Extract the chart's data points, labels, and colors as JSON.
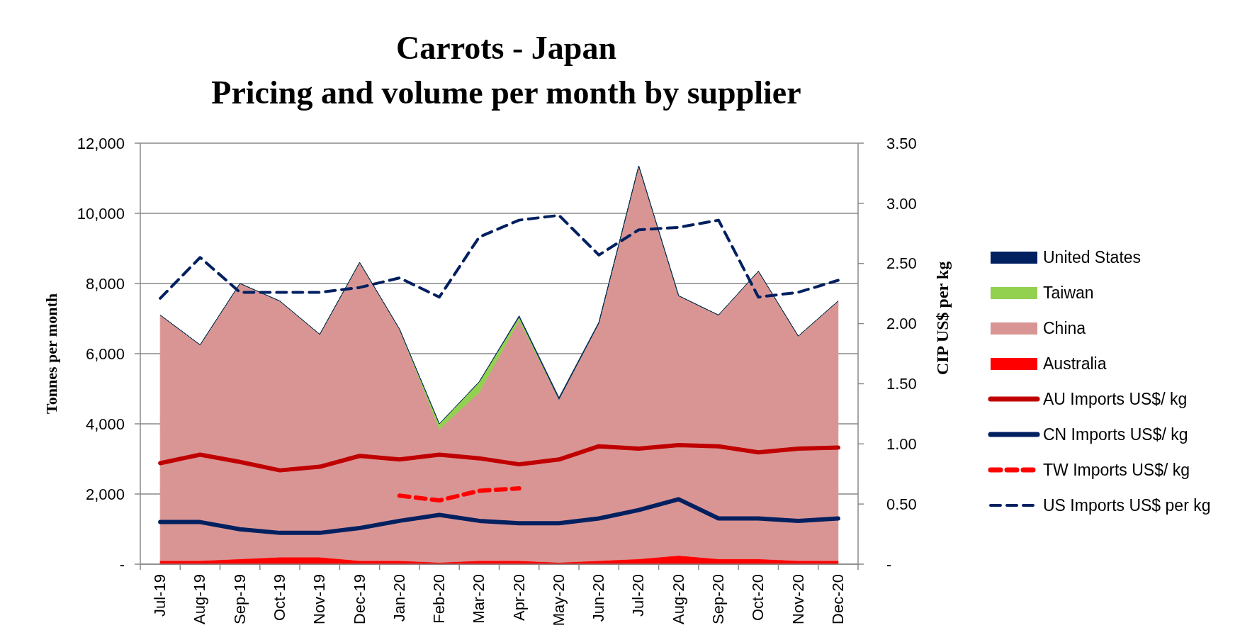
{
  "chart_data": {
    "type": "area",
    "title": "Carrots - Japan",
    "subtitle": "Pricing and volume per month by supplier",
    "ylabel": "Tonnes per month",
    "y2label": "CIP US$ per kg",
    "categories": [
      "Jul-19",
      "Aug-19",
      "Sep-19",
      "Oct-19",
      "Nov-19",
      "Dec-19",
      "Jan-20",
      "Feb-20",
      "Mar-20",
      "Apr-20",
      "May-20",
      "Jun-20",
      "Jul-20",
      "Aug-20",
      "Sep-20",
      "Oct-20",
      "Nov-20",
      "Dec-20"
    ],
    "stacked": true,
    "ylim": [
      0,
      12000
    ],
    "yticks": [
      {
        "value": 0,
        "label": "-"
      },
      {
        "value": 2000,
        "label": "2,000"
      },
      {
        "value": 4000,
        "label": "4,000"
      },
      {
        "value": 6000,
        "label": "6,000"
      },
      {
        "value": 8000,
        "label": "8,000"
      },
      {
        "value": 10000,
        "label": "10,000"
      },
      {
        "value": 12000,
        "label": "12,000"
      }
    ],
    "y2lim": [
      0,
      3.5
    ],
    "y2ticks": [
      {
        "value": 0,
        "label": "-"
      },
      {
        "value": 0.5,
        "label": "0.50"
      },
      {
        "value": 1,
        "label": "1.00"
      },
      {
        "value": 1.5,
        "label": "1.50"
      },
      {
        "value": 2,
        "label": "2.00"
      },
      {
        "value": 2.5,
        "label": "2.50"
      },
      {
        "value": 3,
        "label": "3.00"
      },
      {
        "value": 3.5,
        "label": "3.50"
      }
    ],
    "grid": "y",
    "legend": "right",
    "series": [
      {
        "name": "Australia",
        "color": "#ff0000",
        "values": [
          100,
          100,
          150,
          200,
          200,
          100,
          100,
          50,
          100,
          100,
          50,
          100,
          150,
          250,
          150,
          150,
          100,
          100
        ]
      },
      {
        "name": "China",
        "color": "#d99594",
        "values": [
          7000,
          6150,
          7850,
          7300,
          6350,
          8500,
          6600,
          3800,
          4800,
          6850,
          4650,
          6770,
          11200,
          7400,
          6950,
          8200,
          6400,
          7400
        ]
      },
      {
        "name": "Taiwan",
        "color": "#92d050",
        "values": [
          0,
          0,
          0,
          0,
          0,
          0,
          0,
          150,
          300,
          100,
          0,
          0,
          0,
          0,
          0,
          0,
          0,
          0
        ]
      },
      {
        "name": "United States",
        "color": "#002060",
        "values": [
          0,
          0,
          0,
          0,
          0,
          0,
          0,
          0,
          0,
          30,
          50,
          30,
          0,
          0,
          0,
          0,
          0,
          0
        ]
      },
      {
        "name": "AU Imports US$/ kg",
        "type": "line",
        "axis": "y2",
        "line_style": "solid",
        "color": "#c00000",
        "values": [
          0.84,
          0.91,
          0.85,
          0.78,
          0.81,
          0.9,
          0.87,
          0.91,
          0.88,
          0.83,
          0.87,
          0.98,
          0.96,
          0.99,
          0.98,
          0.93,
          0.96,
          0.97
        ]
      },
      {
        "name": "CN Imports US$/ kg",
        "type": "line",
        "axis": "y2",
        "line_style": "solid",
        "color": "#002060",
        "values": [
          0.35,
          0.35,
          0.29,
          0.26,
          0.26,
          0.3,
          0.36,
          0.41,
          0.36,
          0.34,
          0.34,
          0.38,
          0.45,
          0.54,
          0.38,
          0.38,
          0.36,
          0.38
        ]
      },
      {
        "name": "TW Imports US$/ kg",
        "type": "line",
        "axis": "y2",
        "line_style": "dashed",
        "color": "#ff0000",
        "values": [
          null,
          null,
          null,
          null,
          null,
          null,
          0.57,
          0.53,
          0.61,
          0.63,
          null,
          null,
          null,
          null,
          null,
          null,
          null,
          null
        ]
      },
      {
        "name": "US Imports US$ per kg",
        "type": "line",
        "axis": "y2",
        "line_style": "dashed",
        "color": "#002060",
        "values": [
          2.21,
          2.55,
          2.26,
          2.26,
          2.26,
          2.3,
          2.38,
          2.22,
          2.72,
          2.86,
          2.9,
          2.57,
          2.78,
          2.8,
          2.86,
          2.22,
          2.26,
          2.36
        ]
      }
    ]
  }
}
